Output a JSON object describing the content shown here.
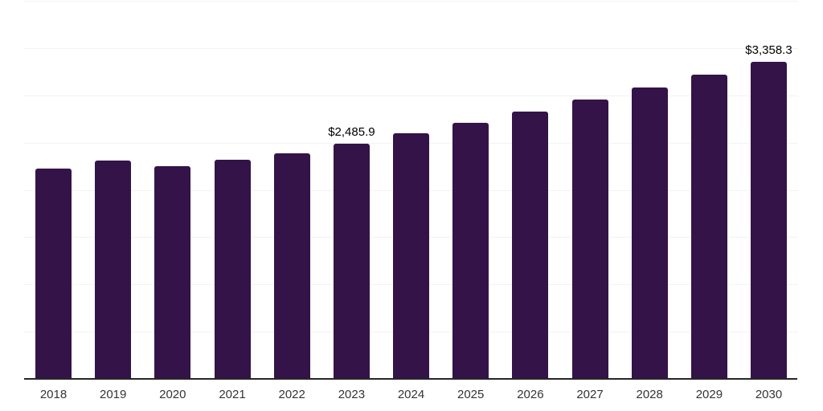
{
  "chart_data": {
    "type": "bar",
    "title": "",
    "categories": [
      "2018",
      "2019",
      "2020",
      "2021",
      "2022",
      "2023",
      "2024",
      "2025",
      "2026",
      "2027",
      "2028",
      "2029",
      "2030"
    ],
    "values": [
      2225,
      2310,
      2250,
      2320,
      2390,
      2485.9,
      2595,
      2710,
      2828,
      2952,
      3081,
      3217,
      3358.3
    ],
    "labeled_points": [
      {
        "category": "2023",
        "text": "$2,485.9"
      },
      {
        "category": "2030",
        "text": "$3,358.3"
      }
    ],
    "xlabel": "",
    "ylabel": "",
    "ylim": [
      0,
      4000
    ],
    "gridline_step": 500,
    "grid": "horizontal",
    "legend": "none",
    "y_axis_labels_visible": false,
    "colors": {
      "bar": "#341349",
      "axis_line": "#262626",
      "gridline": "#f2f2f2",
      "data_label": "#000000",
      "tick_label": "#333333",
      "background": "#ffffff"
    }
  }
}
